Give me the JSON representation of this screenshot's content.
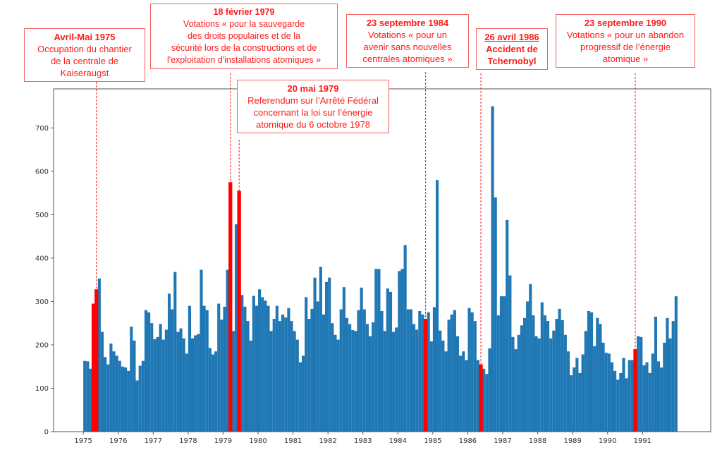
{
  "chart_data": {
    "type": "bar",
    "title": "",
    "xlabel": "",
    "ylabel": "",
    "x_start": "1975-01",
    "frequency": "monthly",
    "xlim": [
      1974.15,
      1992.95
    ],
    "ylim": [
      0,
      790
    ],
    "yticks": [
      0,
      100,
      200,
      300,
      400,
      500,
      600,
      700
    ],
    "xticks": [
      "1975",
      "1976",
      "1977",
      "1978",
      "1979",
      "1980",
      "1981",
      "1982",
      "1983",
      "1984",
      "1985",
      "1986",
      "1987",
      "1988",
      "1989",
      "1990",
      "1991"
    ],
    "grid": false,
    "colors": {
      "normal": "#1f77b4",
      "highlight": "#ff0000",
      "annotation": "#ff1a1a"
    },
    "values": [
      163,
      162,
      145,
      295,
      328,
      353,
      230,
      172,
      155,
      203,
      185,
      175,
      163,
      150,
      148,
      140,
      242,
      210,
      118,
      152,
      163,
      280,
      275,
      250,
      213,
      218,
      248,
      212,
      235,
      318,
      282,
      368,
      230,
      238,
      215,
      180,
      290,
      215,
      222,
      225,
      373,
      290,
      280,
      193,
      178,
      185,
      295,
      258,
      288,
      373,
      575,
      232,
      478,
      555,
      315,
      288,
      255,
      210,
      313,
      290,
      328,
      310,
      302,
      290,
      232,
      260,
      290,
      255,
      270,
      263,
      285,
      255,
      232,
      212,
      160,
      175,
      310,
      260,
      283,
      355,
      300,
      380,
      270,
      345,
      355,
      250,
      223,
      212,
      282,
      333,
      262,
      248,
      234,
      232,
      280,
      332,
      282,
      248,
      220,
      252,
      375,
      375,
      278,
      232,
      330,
      322,
      230,
      240,
      370,
      375,
      430,
      282,
      282,
      248,
      235,
      278,
      270,
      260,
      275,
      208,
      287,
      580,
      233,
      210,
      185,
      258,
      270,
      280,
      220,
      175,
      185,
      165,
      285,
      275,
      255,
      165,
      155,
      145,
      133,
      192,
      750,
      540,
      268,
      312,
      312,
      488,
      360,
      218,
      190,
      223,
      245,
      262,
      300,
      340,
      268,
      220,
      215,
      298,
      268,
      255,
      215,
      233,
      260,
      283,
      257,
      223,
      185,
      130,
      148,
      170,
      135,
      178,
      232,
      278,
      275,
      197,
      262,
      248,
      205,
      182,
      180,
      160,
      140,
      120,
      135,
      170,
      123,
      165,
      165,
      190,
      220,
      218,
      153,
      160,
      135,
      180,
      265,
      162,
      148,
      205,
      262,
      215,
      255,
      312
    ],
    "highlighted_months": [
      "1975-04",
      "1975-05",
      "1979-03",
      "1979-06",
      "1984-10",
      "1986-05",
      "1990-10"
    ],
    "annotations": [
      {
        "title": "Avril-Mai 1975",
        "body": "Occupation du chantier\nde la centrale de Kaiseraugst",
        "date": "1975-05",
        "underline": false
      },
      {
        "title": "18 février 1979",
        "body": "Votations  « pour la sauvegarde\ndes droits populaires et de la\nsécurité lors de la constructions et de\nl'exploitation d'installations atomiques »",
        "date": "1979-03",
        "underline": false
      },
      {
        "title": "20 mai 1979",
        "body": "Referendum sur l’Arrêté Fédéral\nconcernant la loi sur l’énergie\natomique du 6 octobre 1978",
        "date": "1979-06",
        "underline": false
      },
      {
        "title": "23 septembre 1984",
        "body": "Votations « pour un\navenir sans nouvelles\ncentrales atomiques »",
        "date": "1984-10",
        "underline": false
      },
      {
        "title": "26 avril 1986",
        "body": "Accident de\nTchernobyl",
        "date": "1986-05",
        "underline": true
      },
      {
        "title": "23 septembre 1990",
        "body": "Votations « pour un abandon\nprogressif de l’énergie\natomique »",
        "date": "1990-10",
        "underline": false
      }
    ]
  }
}
